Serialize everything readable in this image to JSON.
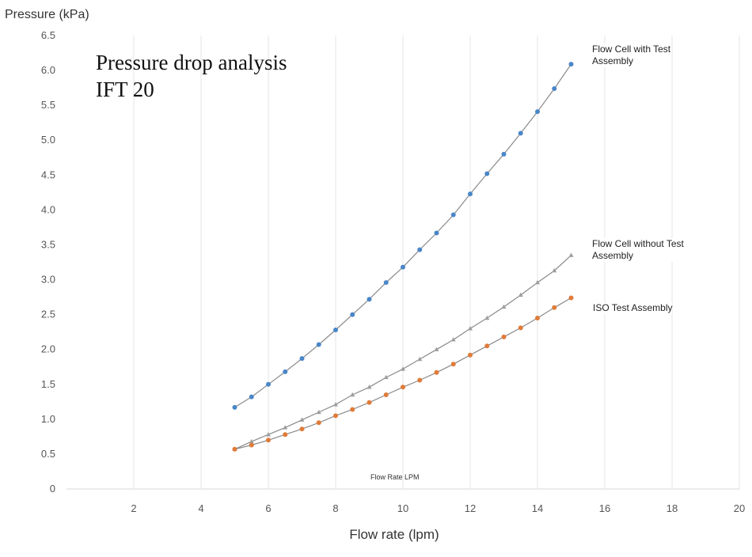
{
  "chart_data": {
    "type": "line",
    "title_lines": [
      "Pressure drop analysis",
      "IFT 20"
    ],
    "xlabel": "Flow  rate (lpm)",
    "ylabel": "Pressure (kPa)",
    "inner_note": "Flow  Rate LPM",
    "xlim": [
      0,
      20
    ],
    "ylim": [
      0,
      6.5
    ],
    "xticks": [
      2,
      4,
      6,
      8,
      10,
      12,
      14,
      16,
      18,
      20
    ],
    "yticks": [
      0,
      0.5,
      1.0,
      1.5,
      2.0,
      2.5,
      3.0,
      3.5,
      4.0,
      4.5,
      5.0,
      5.5,
      6.0,
      6.5
    ],
    "ytick_labels": [
      "0",
      "0.5",
      "1.0",
      "1.5",
      "2.0",
      "2.5",
      "3.0",
      "3.5",
      "4.0",
      "4.5",
      "5.0",
      "5.5",
      "6.0",
      "6.5"
    ],
    "grid": "vertical",
    "x": [
      5,
      5.5,
      6,
      6.5,
      7,
      7.5,
      8,
      8.5,
      9,
      9.5,
      10,
      10.5,
      11,
      11.5,
      12,
      12.5,
      13,
      13.5,
      14,
      14.5,
      15
    ],
    "series": [
      {
        "name": "Flow Cell with Test Assembly",
        "label_lines": [
          "Flow Cell with Test",
          "Assembly"
        ],
        "color": "#4a86c8",
        "marker": "circle",
        "values": [
          1.17,
          1.32,
          1.5,
          1.68,
          1.87,
          2.07,
          2.28,
          2.5,
          2.72,
          2.96,
          3.18,
          3.43,
          3.67,
          3.93,
          4.23,
          4.52,
          4.8,
          5.1,
          5.41,
          5.74,
          6.09
        ]
      },
      {
        "name": "Flow Cell without Test Assembly",
        "label_lines": [
          "Flow Cell without Test",
          "Assembly"
        ],
        "color": "#9e9e9e",
        "marker": "triangle",
        "values": [
          0.57,
          0.68,
          0.78,
          0.88,
          0.99,
          1.1,
          1.21,
          1.35,
          1.46,
          1.6,
          1.72,
          1.86,
          2.0,
          2.14,
          2.3,
          2.45,
          2.61,
          2.78,
          2.96,
          3.13,
          3.35
        ]
      },
      {
        "name": "ISO Test Assembly",
        "label_lines": [
          "ISO Test Assembly"
        ],
        "color": "#e07b39",
        "marker": "circle",
        "values": [
          0.57,
          0.63,
          0.7,
          0.78,
          0.86,
          0.95,
          1.05,
          1.14,
          1.24,
          1.35,
          1.46,
          1.56,
          1.67,
          1.79,
          1.92,
          2.05,
          2.18,
          2.31,
          2.45,
          2.6,
          2.74
        ]
      }
    ]
  }
}
